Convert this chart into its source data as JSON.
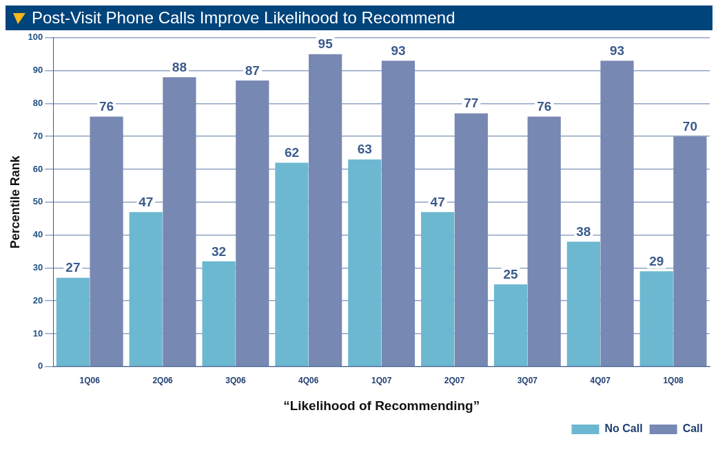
{
  "chart_data": {
    "type": "bar",
    "title": "Post-Visit Phone Calls Improve Likelihood to Recommend",
    "xlabel": "“Likelihood of Recommending”",
    "ylabel": "Percentile Rank",
    "categories": [
      "1Q06",
      "2Q06",
      "3Q06",
      "4Q06",
      "1Q07",
      "2Q07",
      "3Q07",
      "4Q07",
      "1Q08"
    ],
    "series": [
      {
        "name": "No Call",
        "color": "#6cb8d0",
        "values": [
          27,
          47,
          32,
          62,
          63,
          47,
          25,
          38,
          29
        ]
      },
      {
        "name": "Call",
        "color": "#7788b2",
        "values": [
          76,
          88,
          87,
          95,
          93,
          77,
          76,
          93,
          70
        ]
      }
    ],
    "ylim": [
      0,
      100
    ],
    "yticks": [
      0,
      10,
      20,
      30,
      40,
      50,
      60,
      70,
      80,
      90,
      100
    ],
    "grid": "y",
    "data_labels": true,
    "legend": "bottom right"
  }
}
